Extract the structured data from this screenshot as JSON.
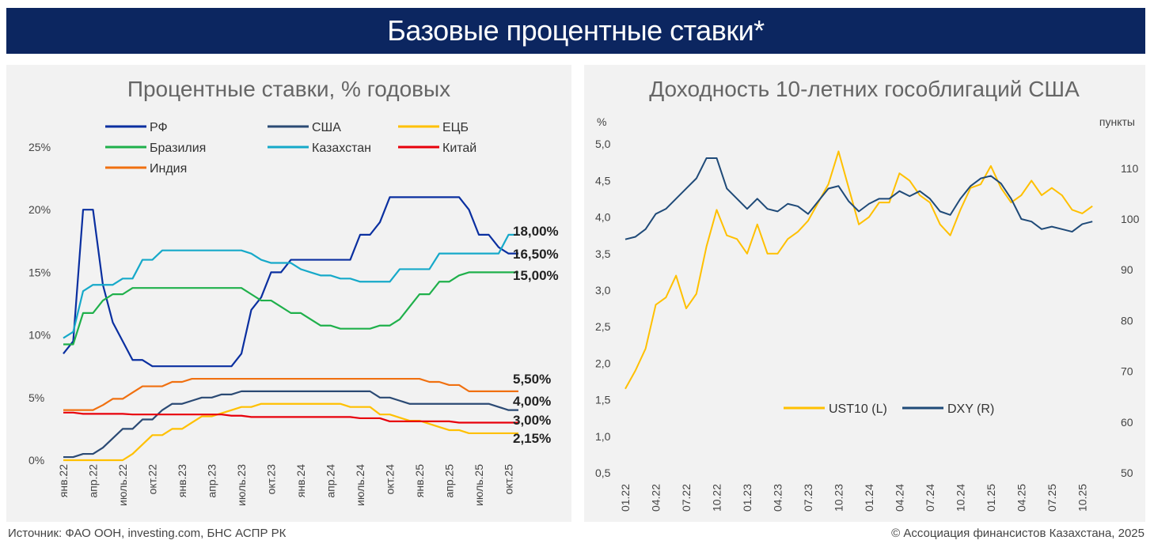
{
  "header": {
    "title": "Базовые процентные ставки*"
  },
  "footer": {
    "source": "Источник: ФАО ООН, investing.com, БНС АСПР РК",
    "copyright": "© Ассоциация финансистов Казахстана, 2025"
  },
  "chart_data": [
    {
      "type": "line",
      "title": "Процентные ставки, % годовых",
      "ylim": [
        0,
        25
      ],
      "yticks": [
        "0%",
        "5%",
        "10%",
        "15%",
        "20%",
        "25%"
      ],
      "xticks": [
        "янв.22",
        "апр.22",
        "июль.22",
        "окт.22",
        "янв.23",
        "апр.23",
        "июль.23",
        "окт.23",
        "янв.24",
        "апр.24",
        "июль.24",
        "окт.24",
        "янв.25",
        "апр.25",
        "июль.25",
        "окт.25"
      ],
      "x_start": "янв.22",
      "x_step": "month",
      "legend": "top",
      "series": [
        {
          "name": "РФ",
          "color": "#0a2fa0",
          "end_label": "16,50%",
          "values": [
            8.5,
            9.5,
            20,
            20,
            14,
            11,
            9.5,
            8,
            8,
            7.5,
            7.5,
            7.5,
            7.5,
            7.5,
            7.5,
            7.5,
            7.5,
            7.5,
            8.5,
            12,
            13,
            15,
            15,
            16,
            16,
            16,
            16,
            16,
            16,
            16,
            18,
            18,
            19,
            21,
            21,
            21,
            21,
            21,
            21,
            21,
            21,
            20,
            18,
            18,
            17,
            16.5,
            16.5
          ]
        },
        {
          "name": "США",
          "color": "#2b4a74",
          "end_label": "4,00%",
          "values": [
            0.25,
            0.25,
            0.5,
            0.5,
            1,
            1.75,
            2.5,
            2.5,
            3.25,
            3.25,
            4,
            4.5,
            4.5,
            4.75,
            5,
            5,
            5.25,
            5.25,
            5.5,
            5.5,
            5.5,
            5.5,
            5.5,
            5.5,
            5.5,
            5.5,
            5.5,
            5.5,
            5.5,
            5.5,
            5.5,
            5.5,
            5,
            5,
            4.75,
            4.5,
            4.5,
            4.5,
            4.5,
            4.5,
            4.5,
            4.5,
            4.5,
            4.5,
            4.25,
            4,
            4
          ]
        },
        {
          "name": "ЕЦБ",
          "color": "#ffc000",
          "end_label": "2,15%",
          "values": [
            0,
            0,
            0,
            0,
            0,
            0,
            0,
            0.5,
            1.25,
            2,
            2,
            2.5,
            2.5,
            3,
            3.5,
            3.5,
            3.75,
            4,
            4.25,
            4.25,
            4.5,
            4.5,
            4.5,
            4.5,
            4.5,
            4.5,
            4.5,
            4.5,
            4.5,
            4.25,
            4.25,
            4.25,
            3.65,
            3.65,
            3.4,
            3.15,
            3.15,
            2.9,
            2.65,
            2.4,
            2.4,
            2.15,
            2.15,
            2.15,
            2.15,
            2.15,
            2.15
          ]
        },
        {
          "name": "Бразилия",
          "color": "#1fb04b",
          "end_label": "15,00%",
          "values": [
            9.25,
            9.25,
            11.75,
            11.75,
            12.75,
            13.25,
            13.25,
            13.75,
            13.75,
            13.75,
            13.75,
            13.75,
            13.75,
            13.75,
            13.75,
            13.75,
            13.75,
            13.75,
            13.75,
            13.25,
            12.75,
            12.75,
            12.25,
            11.75,
            11.75,
            11.25,
            10.75,
            10.75,
            10.5,
            10.5,
            10.5,
            10.5,
            10.75,
            10.75,
            11.25,
            12.25,
            13.25,
            13.25,
            14.25,
            14.25,
            14.75,
            15,
            15,
            15,
            15,
            15,
            15
          ]
        },
        {
          "name": "Казахстан",
          "color": "#16a9c9",
          "end_label": "18,00%",
          "values": [
            9.75,
            10.25,
            13.5,
            14,
            14,
            14,
            14.5,
            14.5,
            16,
            16,
            16.75,
            16.75,
            16.75,
            16.75,
            16.75,
            16.75,
            16.75,
            16.75,
            16.75,
            16.5,
            16,
            15.75,
            15.75,
            15.75,
            15.25,
            15,
            14.75,
            14.75,
            14.5,
            14.5,
            14.25,
            14.25,
            14.25,
            14.25,
            15.25,
            15.25,
            15.25,
            15.25,
            16.5,
            16.5,
            16.5,
            16.5,
            16.5,
            16.5,
            16.5,
            18,
            18
          ]
        },
        {
          "name": "Китай",
          "color": "#e8000b",
          "end_label": "3,00%",
          "values": [
            3.8,
            3.8,
            3.7,
            3.7,
            3.7,
            3.7,
            3.7,
            3.65,
            3.65,
            3.65,
            3.65,
            3.65,
            3.65,
            3.65,
            3.65,
            3.65,
            3.65,
            3.55,
            3.55,
            3.45,
            3.45,
            3.45,
            3.45,
            3.45,
            3.45,
            3.45,
            3.45,
            3.45,
            3.45,
            3.45,
            3.35,
            3.35,
            3.35,
            3.1,
            3.1,
            3.1,
            3.1,
            3.1,
            3.1,
            3.1,
            3.0,
            3.0,
            3.0,
            3.0,
            3.0,
            3.0,
            3.0
          ]
        },
        {
          "name": "Индия",
          "color": "#f07010",
          "end_label": "5,50%",
          "values": [
            4,
            4,
            4,
            4,
            4.4,
            4.9,
            4.9,
            5.4,
            5.9,
            5.9,
            5.9,
            6.25,
            6.25,
            6.5,
            6.5,
            6.5,
            6.5,
            6.5,
            6.5,
            6.5,
            6.5,
            6.5,
            6.5,
            6.5,
            6.5,
            6.5,
            6.5,
            6.5,
            6.5,
            6.5,
            6.5,
            6.5,
            6.5,
            6.5,
            6.5,
            6.5,
            6.5,
            6.25,
            6.25,
            6,
            6,
            5.5,
            5.5,
            5.5,
            5.5,
            5.5,
            5.5
          ]
        }
      ]
    },
    {
      "type": "line",
      "title": "Доходность 10-летних гособлигаций США",
      "ylabel_left": "%",
      "ylabel_right": "пункты",
      "ylim_left": [
        0.5,
        5.0
      ],
      "ylim_right": [
        50,
        115
      ],
      "yticks_left": [
        "0,5",
        "1,0",
        "1,5",
        "2,0",
        "2,5",
        "3,0",
        "3,5",
        "4,0",
        "4,5",
        "5,0"
      ],
      "yticks_right": [
        "50",
        "60",
        "70",
        "80",
        "90",
        "100",
        "110"
      ],
      "xticks": [
        "01.22",
        "04.22",
        "07.22",
        "10.22",
        "01.23",
        "04.23",
        "07.23",
        "10.23",
        "01.24",
        "04.24",
        "07.24",
        "10.24",
        "01.25",
        "04.25",
        "07.25",
        "10.25"
      ],
      "x_start": "01.22",
      "x_step": "month",
      "legend": "bottom-center",
      "series": [
        {
          "name": "UST10 (L)",
          "color": "#ffc000",
          "axis": "left",
          "values": [
            1.65,
            1.9,
            2.2,
            2.8,
            2.9,
            3.2,
            2.75,
            2.95,
            3.6,
            4.1,
            3.75,
            3.7,
            3.5,
            3.9,
            3.5,
            3.5,
            3.7,
            3.8,
            3.95,
            4.2,
            4.45,
            4.9,
            4.4,
            3.9,
            4.0,
            4.2,
            4.2,
            4.6,
            4.5,
            4.3,
            4.2,
            3.9,
            3.75,
            4.1,
            4.4,
            4.45,
            4.7,
            4.4,
            4.2,
            4.3,
            4.5,
            4.3,
            4.4,
            4.3,
            4.1,
            4.05,
            4.15
          ]
        },
        {
          "name": "DXY (R)",
          "color": "#1f4a78",
          "axis": "right",
          "values": [
            96,
            96.5,
            98,
            101,
            102,
            104,
            106,
            108,
            112,
            112,
            106,
            104,
            102,
            104,
            102,
            101.5,
            103,
            102.5,
            101,
            103.5,
            106,
            106.5,
            103.5,
            101.5,
            103,
            104,
            104,
            105.5,
            104.5,
            105.5,
            104,
            101.5,
            100.8,
            104,
            106.5,
            108,
            108.5,
            107,
            104,
            100,
            99.5,
            98,
            98.5,
            98,
            97.5,
            99,
            99.5
          ]
        }
      ]
    }
  ]
}
